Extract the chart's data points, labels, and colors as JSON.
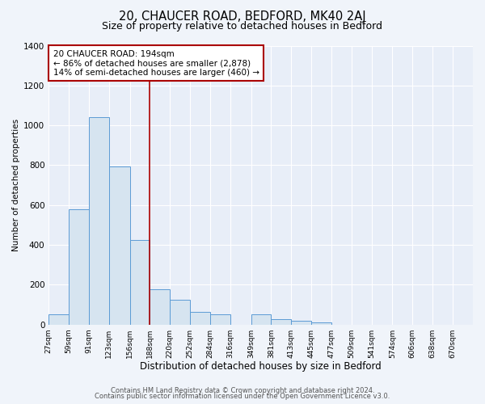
{
  "title": "20, CHAUCER ROAD, BEDFORD, MK40 2AJ",
  "subtitle": "Size of property relative to detached houses in Bedford",
  "xlabel": "Distribution of detached houses by size in Bedford",
  "ylabel": "Number of detached properties",
  "bar_left_edges": [
    27,
    59,
    91,
    123,
    156,
    188,
    220,
    252,
    284,
    316,
    349,
    381,
    413,
    445,
    477,
    509,
    541,
    574,
    606,
    638
  ],
  "bar_widths": [
    32,
    32,
    32,
    33,
    32,
    32,
    32,
    32,
    32,
    33,
    32,
    32,
    32,
    32,
    32,
    32,
    33,
    32,
    32,
    32
  ],
  "bar_heights": [
    50,
    578,
    1042,
    793,
    425,
    175,
    125,
    62,
    50,
    0,
    50,
    25,
    20,
    10,
    0,
    0,
    0,
    0,
    0,
    0
  ],
  "bar_color": "#d6e4f0",
  "bar_edgecolor": "#5b9bd5",
  "tick_labels": [
    "27sqm",
    "59sqm",
    "91sqm",
    "123sqm",
    "156sqm",
    "188sqm",
    "220sqm",
    "252sqm",
    "284sqm",
    "316sqm",
    "349sqm",
    "381sqm",
    "413sqm",
    "445sqm",
    "477sqm",
    "509sqm",
    "541sqm",
    "574sqm",
    "606sqm",
    "638sqm",
    "670sqm"
  ],
  "tick_positions": [
    27,
    59,
    91,
    123,
    156,
    188,
    220,
    252,
    284,
    316,
    349,
    381,
    413,
    445,
    477,
    509,
    541,
    574,
    606,
    638,
    670
  ],
  "property_x": 188,
  "property_line_color": "#aa0000",
  "annotation_line1": "20 CHAUCER ROAD: 194sqm",
  "annotation_line2": "← 86% of detached houses are smaller (2,878)",
  "annotation_line3": "14% of semi-detached houses are larger (460) →",
  "annotation_box_edgecolor": "#aa0000",
  "ylim": [
    0,
    1400
  ],
  "yticks": [
    0,
    200,
    400,
    600,
    800,
    1000,
    1200,
    1400
  ],
  "xlim": [
    27,
    702
  ],
  "fig_bg_color": "#f0f4fa",
  "plot_bg_color": "#e8eef8",
  "grid_color": "#ffffff",
  "footer_line1": "Contains HM Land Registry data © Crown copyright and database right 2024.",
  "footer_line2": "Contains public sector information licensed under the Open Government Licence v3.0.",
  "title_fontsize": 10.5,
  "subtitle_fontsize": 9,
  "xlabel_fontsize": 8.5,
  "ylabel_fontsize": 7.5,
  "ytick_fontsize": 7.5,
  "xtick_fontsize": 6.5,
  "annotation_fontsize": 7.5,
  "footer_fontsize": 6
}
